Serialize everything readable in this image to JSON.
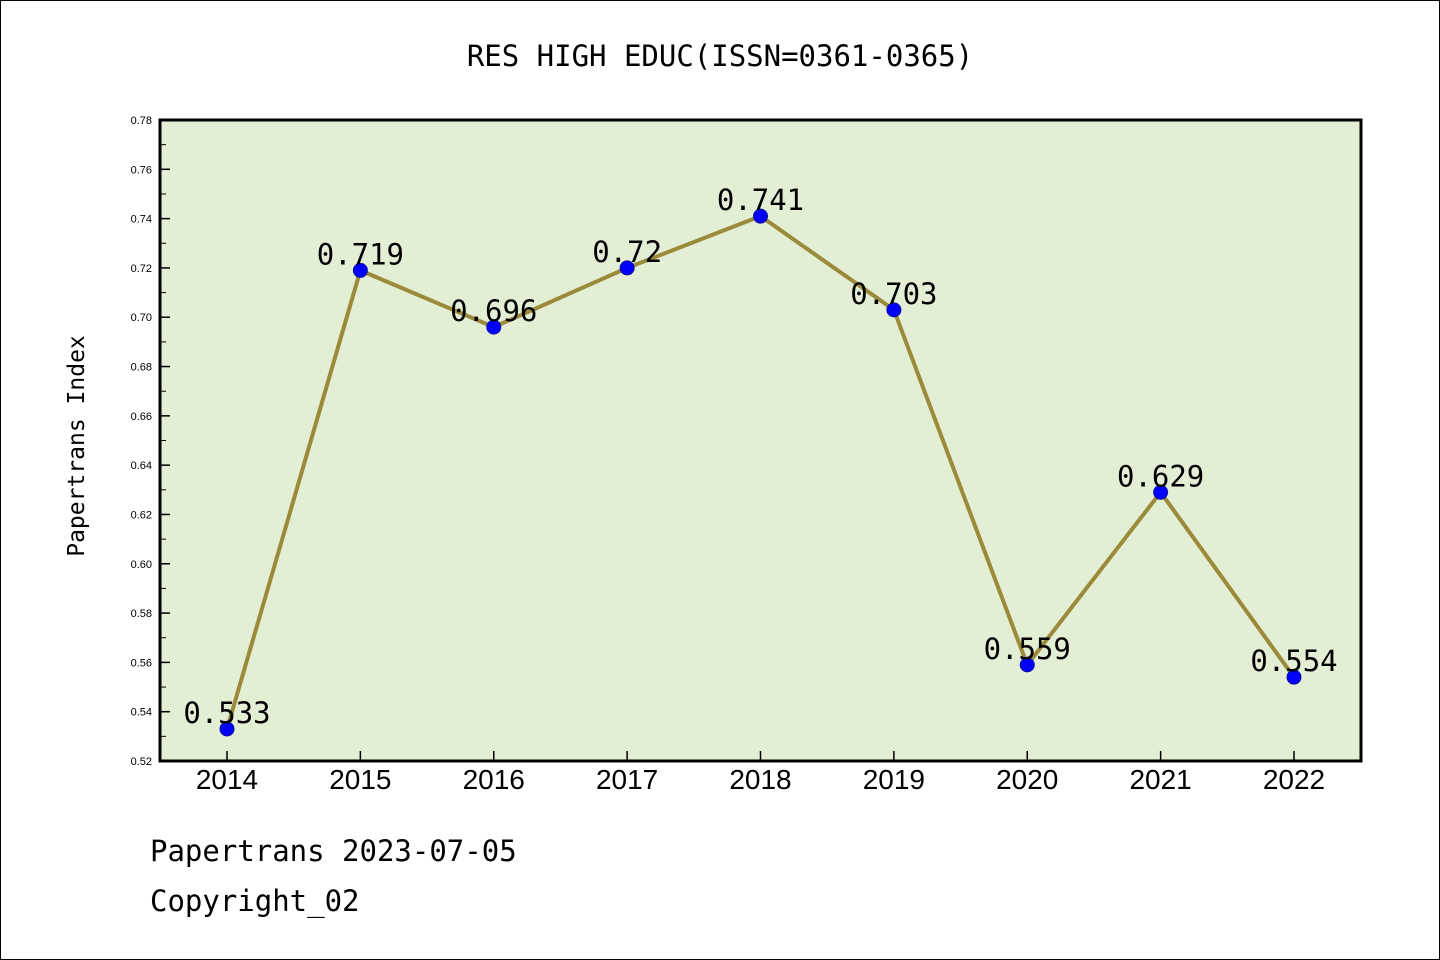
{
  "chart_data": {
    "type": "line",
    "title": "RES HIGH EDUC(ISSN=0361-0365)",
    "xlabel": "",
    "ylabel": "Papertrans Index",
    "categories": [
      "2014",
      "2015",
      "2016",
      "2017",
      "2018",
      "2019",
      "2020",
      "2021",
      "2022"
    ],
    "values": [
      0.533,
      0.719,
      0.696,
      0.72,
      0.741,
      0.703,
      0.559,
      0.629,
      0.554
    ],
    "data_labels": [
      "0.533",
      "0.719",
      "0.696",
      "0.72",
      "0.741",
      "0.703",
      "0.559",
      "0.629",
      "0.554"
    ],
    "ylim": [
      0.52,
      0.78
    ],
    "yticks": [
      "0.52",
      "0.54",
      "0.56",
      "0.58",
      "0.60",
      "0.62",
      "0.64",
      "0.66",
      "0.68",
      "0.70",
      "0.72",
      "0.74",
      "0.76",
      "0.78"
    ],
    "grid": false,
    "colors": {
      "plot_background": "#e2efd5",
      "line": "#9a8a3a",
      "marker": "#0000ff"
    }
  },
  "footer": {
    "line1": "Papertrans 2023-07-05",
    "line2": "Copyright_02"
  }
}
